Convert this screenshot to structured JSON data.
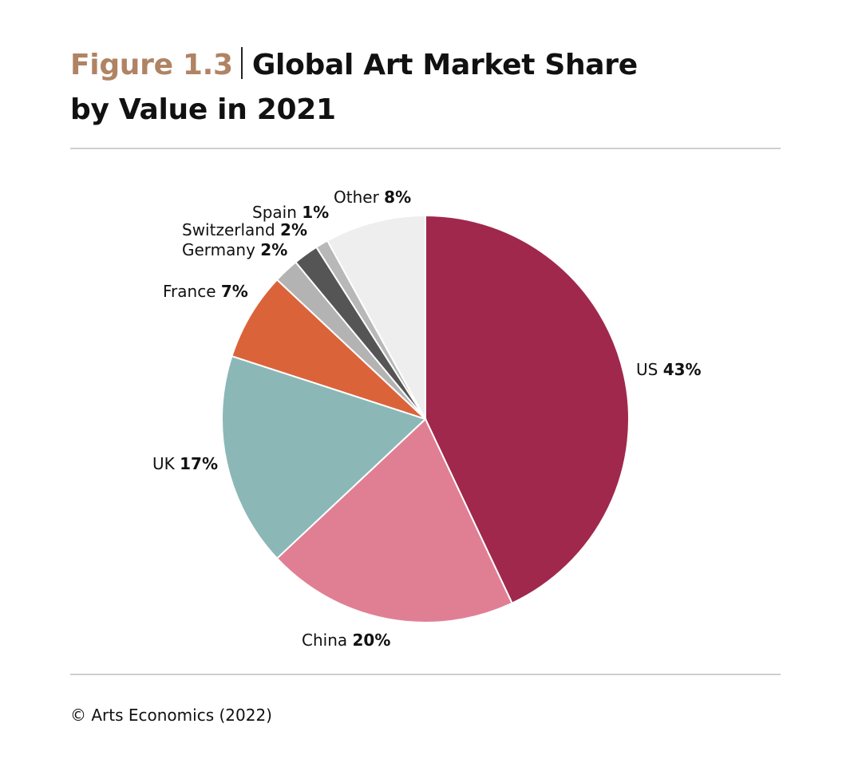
{
  "header": {
    "figure_label": "Figure 1.3",
    "title_line1": "Global Art Market Share",
    "title_line2": "by Value in 2021"
  },
  "footer": {
    "source": "© Arts Economics (2022)"
  },
  "chart_data": {
    "type": "pie",
    "title": "Global Art Market Share by Value in 2021",
    "unit": "%",
    "start_angle_deg": 0,
    "direction": "clockwise",
    "slices": [
      {
        "label": "US",
        "value": 43,
        "display": "43%",
        "color": "#a0284c"
      },
      {
        "label": "China",
        "value": 20,
        "display": "20%",
        "color": "#e07f93"
      },
      {
        "label": "UK",
        "value": 17,
        "display": "17%",
        "color": "#8bb7b7"
      },
      {
        "label": "France",
        "value": 7,
        "display": "7%",
        "color": "#db6339"
      },
      {
        "label": "Germany",
        "value": 2,
        "display": "2%",
        "color": "#b3b3b3"
      },
      {
        "label": "Switzerland",
        "value": 2,
        "display": "2%",
        "color": "#555555"
      },
      {
        "label": "Spain",
        "value": 1,
        "display": "1%",
        "color": "#b8b8b8"
      },
      {
        "label": "Other",
        "value": 8,
        "display": "8%",
        "color": "#eeeeee"
      }
    ]
  }
}
